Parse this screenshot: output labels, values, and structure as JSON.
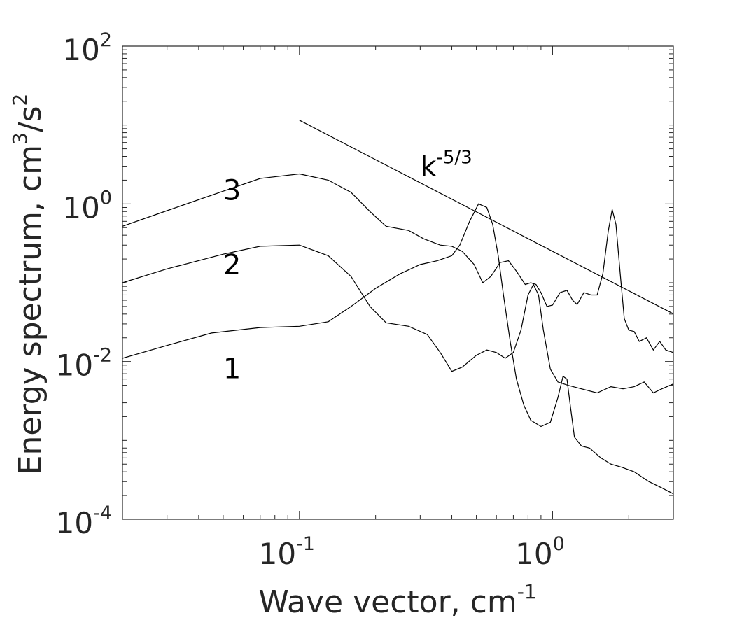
{
  "chart_data": {
    "type": "line",
    "xscale": "log",
    "yscale": "log",
    "xlim": [
      0.02,
      3
    ],
    "ylim": [
      0.0001,
      100
    ],
    "grid": false,
    "xlabel": {
      "text": "Wave vector, cm",
      "superscript": "-1"
    },
    "ylabel": {
      "text_parts": [
        "Energy spectrum, cm",
        "3",
        "/s",
        "2"
      ]
    },
    "x_ticks": [
      {
        "value": 0.1,
        "base": "10",
        "exp": "-1"
      },
      {
        "value": 1,
        "base": "10",
        "exp": "0"
      }
    ],
    "y_ticks": [
      {
        "value": 0.0001,
        "base": "10",
        "exp": "-4"
      },
      {
        "value": 0.01,
        "base": "10",
        "exp": "-2"
      },
      {
        "value": 1,
        "base": "10",
        "exp": "0"
      },
      {
        "value": 100,
        "base": "10",
        "exp": "2"
      }
    ],
    "series": [
      {
        "label": "3",
        "label_at": [
          0.05,
          1.5
        ],
        "points": [
          [
            0.02,
            0.52
          ],
          [
            0.03,
            0.82
          ],
          [
            0.05,
            1.45
          ],
          [
            0.07,
            2.1
          ],
          [
            0.1,
            2.4
          ],
          [
            0.13,
            2.0
          ],
          [
            0.16,
            1.4
          ],
          [
            0.19,
            0.8
          ],
          [
            0.22,
            0.52
          ],
          [
            0.27,
            0.46
          ],
          [
            0.31,
            0.36
          ],
          [
            0.36,
            0.3
          ],
          [
            0.4,
            0.29
          ],
          [
            0.44,
            0.25
          ],
          [
            0.49,
            0.17
          ],
          [
            0.53,
            0.1
          ],
          [
            0.57,
            0.12
          ],
          [
            0.62,
            0.18
          ],
          [
            0.67,
            0.19
          ],
          [
            0.72,
            0.14
          ],
          [
            0.78,
            0.095
          ],
          [
            0.82,
            0.1
          ],
          [
            0.86,
            0.095
          ],
          [
            0.9,
            0.075
          ],
          [
            0.95,
            0.05
          ],
          [
            1.0,
            0.052
          ],
          [
            1.07,
            0.075
          ],
          [
            1.14,
            0.08
          ],
          [
            1.2,
            0.06
          ],
          [
            1.25,
            0.053
          ],
          [
            1.33,
            0.075
          ],
          [
            1.42,
            0.07
          ],
          [
            1.5,
            0.07
          ],
          [
            1.58,
            0.13
          ],
          [
            1.66,
            0.45
          ],
          [
            1.72,
            0.85
          ],
          [
            1.78,
            0.55
          ],
          [
            1.85,
            0.13
          ],
          [
            1.92,
            0.035
          ],
          [
            2.0,
            0.025
          ],
          [
            2.1,
            0.024
          ],
          [
            2.2,
            0.018
          ],
          [
            2.35,
            0.02
          ],
          [
            2.5,
            0.014
          ],
          [
            2.65,
            0.018
          ],
          [
            2.8,
            0.014
          ],
          [
            3.0,
            0.013
          ]
        ]
      },
      {
        "label": "2",
        "label_at": [
          0.05,
          0.17
        ],
        "points": [
          [
            0.02,
            0.1
          ],
          [
            0.03,
            0.15
          ],
          [
            0.05,
            0.23
          ],
          [
            0.07,
            0.29
          ],
          [
            0.1,
            0.3
          ],
          [
            0.13,
            0.22
          ],
          [
            0.16,
            0.12
          ],
          [
            0.19,
            0.05
          ],
          [
            0.22,
            0.031
          ],
          [
            0.27,
            0.028
          ],
          [
            0.32,
            0.022
          ],
          [
            0.36,
            0.013
          ],
          [
            0.4,
            0.0075
          ],
          [
            0.44,
            0.0085
          ],
          [
            0.5,
            0.012
          ],
          [
            0.55,
            0.014
          ],
          [
            0.6,
            0.013
          ],
          [
            0.65,
            0.011
          ],
          [
            0.7,
            0.013
          ],
          [
            0.75,
            0.025
          ],
          [
            0.8,
            0.07
          ],
          [
            0.84,
            0.095
          ],
          [
            0.88,
            0.07
          ],
          [
            0.92,
            0.025
          ],
          [
            0.98,
            0.008
          ],
          [
            1.05,
            0.0055
          ],
          [
            1.15,
            0.005
          ],
          [
            1.3,
            0.0045
          ],
          [
            1.5,
            0.004
          ],
          [
            1.7,
            0.0048
          ],
          [
            1.9,
            0.0045
          ],
          [
            2.1,
            0.0048
          ],
          [
            2.3,
            0.0055
          ],
          [
            2.5,
            0.004
          ],
          [
            2.7,
            0.0045
          ],
          [
            3.0,
            0.0052
          ]
        ]
      },
      {
        "label": "1",
        "label_at": [
          0.05,
          0.0082
        ],
        "points": [
          [
            0.02,
            0.011
          ],
          [
            0.03,
            0.016
          ],
          [
            0.045,
            0.023
          ],
          [
            0.07,
            0.027
          ],
          [
            0.1,
            0.028
          ],
          [
            0.13,
            0.032
          ],
          [
            0.16,
            0.05
          ],
          [
            0.2,
            0.085
          ],
          [
            0.25,
            0.13
          ],
          [
            0.3,
            0.17
          ],
          [
            0.35,
            0.19
          ],
          [
            0.4,
            0.22
          ],
          [
            0.43,
            0.3
          ],
          [
            0.47,
            0.6
          ],
          [
            0.51,
            1.0
          ],
          [
            0.55,
            0.9
          ],
          [
            0.58,
            0.55
          ],
          [
            0.61,
            0.22
          ],
          [
            0.64,
            0.07
          ],
          [
            0.68,
            0.018
          ],
          [
            0.72,
            0.006
          ],
          [
            0.77,
            0.0028
          ],
          [
            0.82,
            0.0018
          ],
          [
            0.9,
            0.0015
          ],
          [
            0.98,
            0.0017
          ],
          [
            1.05,
            0.0035
          ],
          [
            1.1,
            0.0065
          ],
          [
            1.14,
            0.006
          ],
          [
            1.18,
            0.0025
          ],
          [
            1.22,
            0.0011
          ],
          [
            1.3,
            0.00085
          ],
          [
            1.4,
            0.0008
          ],
          [
            1.55,
            0.0006
          ],
          [
            1.7,
            0.0005
          ],
          [
            1.9,
            0.00045
          ],
          [
            2.1,
            0.0004
          ],
          [
            2.4,
            0.0003
          ],
          [
            2.7,
            0.00025
          ],
          [
            3.0,
            0.00021
          ]
        ]
      }
    ],
    "reference_line": {
      "label": {
        "base": "k",
        "exp": "-5/3"
      },
      "label_at": [
        0.3,
        3.0
      ],
      "from": [
        0.1,
        11.5
      ],
      "to": [
        3.0,
        0.0403
      ]
    }
  }
}
